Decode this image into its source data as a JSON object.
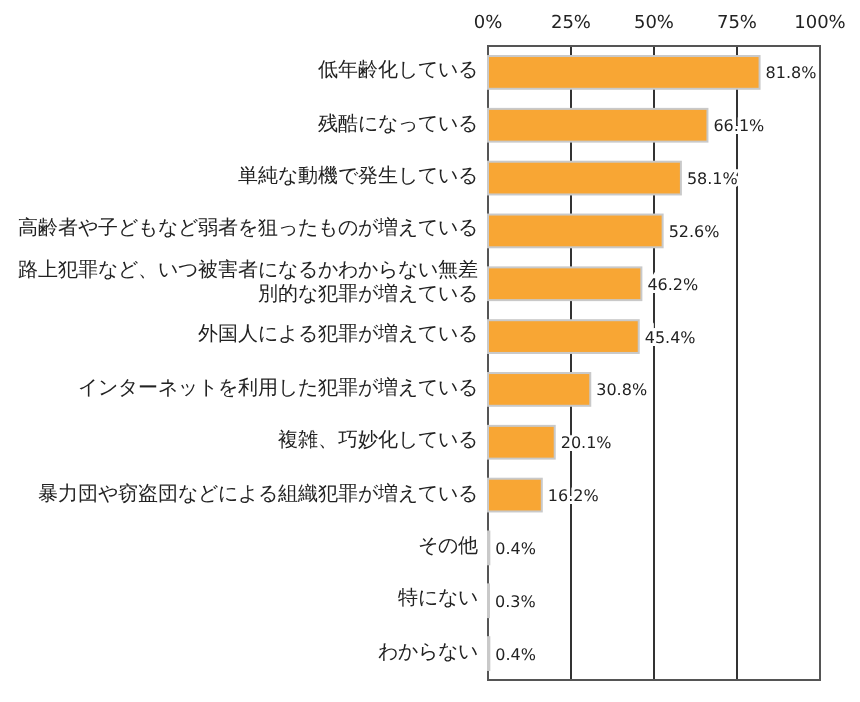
{
  "chart_data": {
    "type": "bar",
    "orientation": "horizontal",
    "categories": [
      "低年齢化している",
      "残酷になっている",
      "単純な動機で発生している",
      "高齢者や子どもなど弱者を狙ったものが増えている",
      "路上犯罪など、いつ被害者になるかわからない無差別的な犯罪が増えている",
      "外国人による犯罪が増えている",
      "インターネットを利用した犯罪が増えている",
      "複雑、巧妙化している",
      "暴力団や窃盗団などによる組織犯罪が増えている",
      "その他",
      "特にない",
      "わからない"
    ],
    "values": [
      81.8,
      66.1,
      58.1,
      52.6,
      46.2,
      45.4,
      30.8,
      20.1,
      16.2,
      0.4,
      0.3,
      0.4
    ],
    "value_labels": [
      "81.8%",
      "66.1%",
      "58.1%",
      "52.6%",
      "46.2%",
      "45.4%",
      "30.8%",
      "20.1%",
      "16.2%",
      "0.4%",
      "0.3%",
      "0.4%"
    ],
    "color": "#f8a634",
    "xlim": [
      0,
      100
    ],
    "xticks": [
      {
        "value": 0,
        "label": "0%"
      },
      {
        "value": 25,
        "label": "25%"
      },
      {
        "value": 50,
        "label": "50%"
      },
      {
        "value": 75,
        "label": "75%"
      },
      {
        "value": 100,
        "label": "100%"
      }
    ],
    "grid": "x"
  }
}
